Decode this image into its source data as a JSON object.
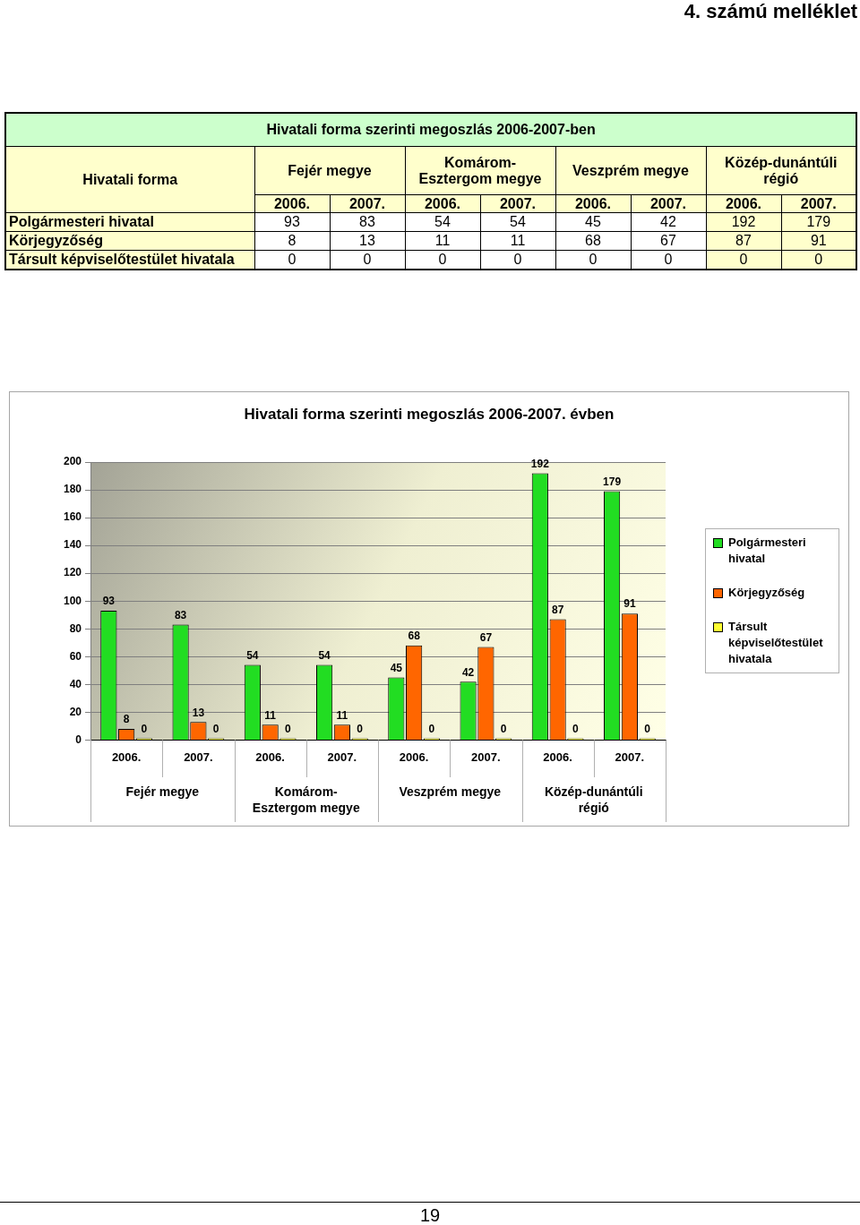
{
  "chart_data": [
    {
      "type": "other",
      "annotations": [
        "4. számú melléklet"
      ]
    },
    {
      "type": "other",
      "title": "Hivatali forma szerinti megoszlás 2006-2007-ben",
      "ylabel": "Hivatali forma",
      "annotations": [
        "Fejér megye",
        "Komárom-Esztergom megye",
        "Veszprém megye",
        "Közép-dunántúli régió"
      ],
      "categories": [
        "2006.",
        "2007.",
        "2006.",
        "2007.",
        "2006.",
        "2007.",
        "2006.",
        "2007."
      ],
      "series": [
        {
          "name": "Polgármesteri hivatal",
          "colors": [
            "#ffffff",
            "#ffffff",
            "#ffffff",
            "#ffffff",
            "#ffffff",
            "#ffffff",
            "#ffffcc",
            "#ffffcc"
          ],
          "values": [
            93,
            83,
            54,
            54,
            45,
            42,
            192,
            179
          ]
        },
        {
          "name": "Körjegyzőség",
          "colors": [
            "#ffffff",
            "#ffffff",
            "#ffffff",
            "#ffffff",
            "#ffffff",
            "#ffffff",
            "#ffffcc",
            "#ffffcc"
          ],
          "values": [
            8,
            13,
            11,
            11,
            68,
            67,
            87,
            91
          ]
        },
        {
          "name": "Társult képviselőtestület hivatala",
          "colors": [
            "#ffffff",
            "#ffffff",
            "#ffffff",
            "#ffffff",
            "#ffffff",
            "#ffffff",
            "#ffffcc",
            "#ffffcc"
          ],
          "values": [
            0,
            0,
            0,
            0,
            0,
            0,
            0,
            0
          ]
        }
      ],
      "data_labels": true
    },
    {
      "type": "bar",
      "title": "Hivatali forma szerinti megoszlás 2006-2007. évben",
      "categories": [
        "2006.",
        "2007.",
        "2006.",
        "2007.",
        "2006.",
        "2007.",
        "2006.",
        "2007."
      ],
      "annotations": [
        "Fejér megye",
        "Komárom-Esztergom megye",
        "Veszprém megye",
        "Közép-dunántúli régió"
      ],
      "series": [
        {
          "name": "Polgármesteri hivatal",
          "color": "#22dd22",
          "values": [
            93,
            83,
            54,
            54,
            45,
            42,
            192,
            179
          ]
        },
        {
          "name": "Körjegyzőség",
          "color": "#ff6600",
          "values": [
            8,
            13,
            11,
            11,
            68,
            67,
            87,
            91
          ]
        },
        {
          "name": "Társult képviselőtestület hivatala",
          "color": "#ffff33",
          "values": [
            0,
            0,
            0,
            0,
            0,
            0,
            0,
            0
          ]
        }
      ],
      "ylim": [
        0,
        200
      ],
      "yticks": [
        0,
        20,
        40,
        60,
        80,
        100,
        120,
        140,
        160,
        180,
        200
      ],
      "grid": "y",
      "legend": "right",
      "data_labels": true
    },
    {
      "type": "other",
      "annotations": [
        "19"
      ]
    }
  ]
}
